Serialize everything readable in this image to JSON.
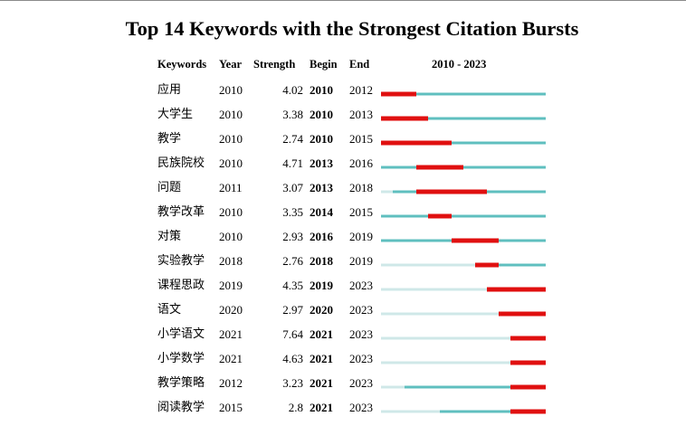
{
  "title": "Top 14 Keywords with the Strongest Citation Bursts",
  "headers": {
    "keywords": "Keywords",
    "year": "Year",
    "strength": "Strength",
    "begin": "Begin",
    "end": "End",
    "range": "2010 - 2023"
  },
  "colors": {
    "burst": "#e01010",
    "active": "#5fbfbf",
    "inactive": "#cfe8e8"
  },
  "chart_data": {
    "type": "table",
    "range": [
      2010,
      2023
    ],
    "rows": [
      {
        "keyword": "应用",
        "year": "2010",
        "strength": "4.02",
        "begin": "2010",
        "end": "2012"
      },
      {
        "keyword": "大学生",
        "year": "2010",
        "strength": "3.38",
        "begin": "2010",
        "end": "2013"
      },
      {
        "keyword": "教学",
        "year": "2010",
        "strength": "2.74",
        "begin": "2010",
        "end": "2015"
      },
      {
        "keyword": "民族院校",
        "year": "2010",
        "strength": "4.71",
        "begin": "2013",
        "end": "2016"
      },
      {
        "keyword": "问题",
        "year": "2011",
        "strength": "3.07",
        "begin": "2013",
        "end": "2018"
      },
      {
        "keyword": "教学改革",
        "year": "2010",
        "strength": "3.35",
        "begin": "2014",
        "end": "2015"
      },
      {
        "keyword": "对策",
        "year": "2010",
        "strength": "2.93",
        "begin": "2016",
        "end": "2019"
      },
      {
        "keyword": "实验教学",
        "year": "2018",
        "strength": "2.76",
        "begin": "2018",
        "end": "2019"
      },
      {
        "keyword": "课程思政",
        "year": "2019",
        "strength": "4.35",
        "begin": "2019",
        "end": "2023"
      },
      {
        "keyword": "语文",
        "year": "2020",
        "strength": "2.97",
        "begin": "2020",
        "end": "2023"
      },
      {
        "keyword": "小学语文",
        "year": "2021",
        "strength": "7.64",
        "begin": "2021",
        "end": "2023"
      },
      {
        "keyword": "小学数学",
        "year": "2021",
        "strength": "4.63",
        "begin": "2021",
        "end": "2023"
      },
      {
        "keyword": "教学策略",
        "year": "2012",
        "strength": "3.23",
        "begin": "2021",
        "end": "2023"
      },
      {
        "keyword": "阅读教学",
        "year": "2015",
        "strength": "2.8",
        "begin": "2021",
        "end": "2023"
      }
    ]
  }
}
